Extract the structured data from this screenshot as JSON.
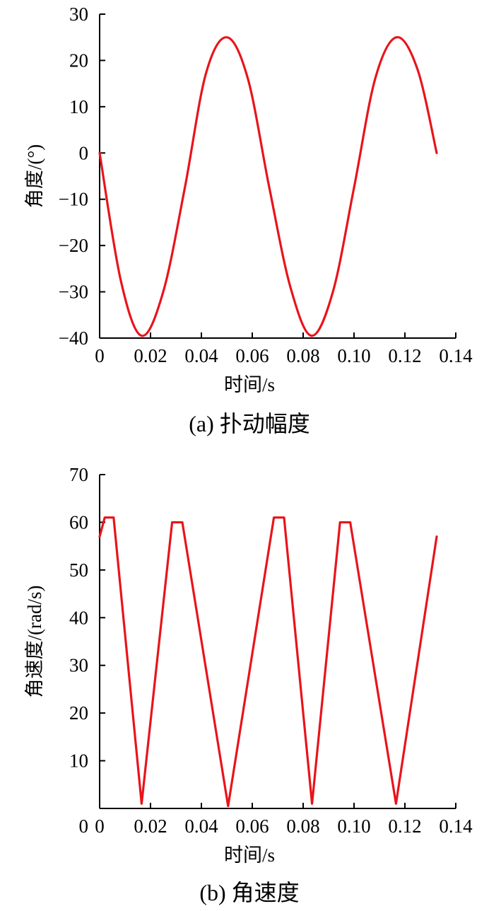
{
  "chart_data": [
    {
      "id": "a",
      "type": "line",
      "caption": "(a)  扑动幅度",
      "xlabel": "时间/s",
      "ylabel": "角度/(°)",
      "xlim": [
        0,
        0.14
      ],
      "ylim": [
        -40,
        30
      ],
      "xticks": [
        "0",
        "0.02",
        "0.04",
        "0.06",
        "0.08",
        "0.10",
        "0.12",
        "0.14"
      ],
      "yticks": [
        "30",
        "20",
        "10",
        "0",
        "−10",
        "−20",
        "−30",
        "−40"
      ],
      "line_color": "#e8141a",
      "x": [
        0,
        0.0083,
        0.0165,
        0.025,
        0.0335,
        0.0417,
        0.05,
        0.0583,
        0.0667,
        0.075,
        0.0833,
        0.0917,
        0.1,
        0.1083,
        0.1167,
        0.125,
        0.1325
      ],
      "y": [
        0,
        -27.5,
        -39.5,
        -30,
        -7.5,
        17,
        25,
        16,
        -7.5,
        -29,
        -39.5,
        -30,
        -7.5,
        16,
        25,
        18,
        0
      ]
    },
    {
      "id": "b",
      "type": "line",
      "caption": "(b)  角速度",
      "xlabel": "时间/s",
      "ylabel": "角速度/(rad/s)",
      "xlim": [
        0,
        0.14
      ],
      "ylim": [
        0,
        70
      ],
      "xticks": [
        "0",
        "0.02",
        "0.04",
        "0.06",
        "0.08",
        "0.10",
        "0.12",
        "0.14"
      ],
      "yticks": [
        "70",
        "60",
        "50",
        "40",
        "30",
        "20",
        "10"
      ],
      "origin_label": "0",
      "line_color": "#e8141a",
      "x": [
        0,
        0.002,
        0.004,
        0.0055,
        0.0165,
        0.0285,
        0.0305,
        0.0325,
        0.0505,
        0.0685,
        0.0705,
        0.0725,
        0.0835,
        0.0945,
        0.0965,
        0.0985,
        0.1165,
        0.1325
      ],
      "y": [
        57,
        61,
        61,
        61,
        1,
        60,
        60,
        60,
        0.5,
        61,
        61,
        61,
        1,
        60,
        60,
        60,
        1,
        57
      ]
    }
  ]
}
